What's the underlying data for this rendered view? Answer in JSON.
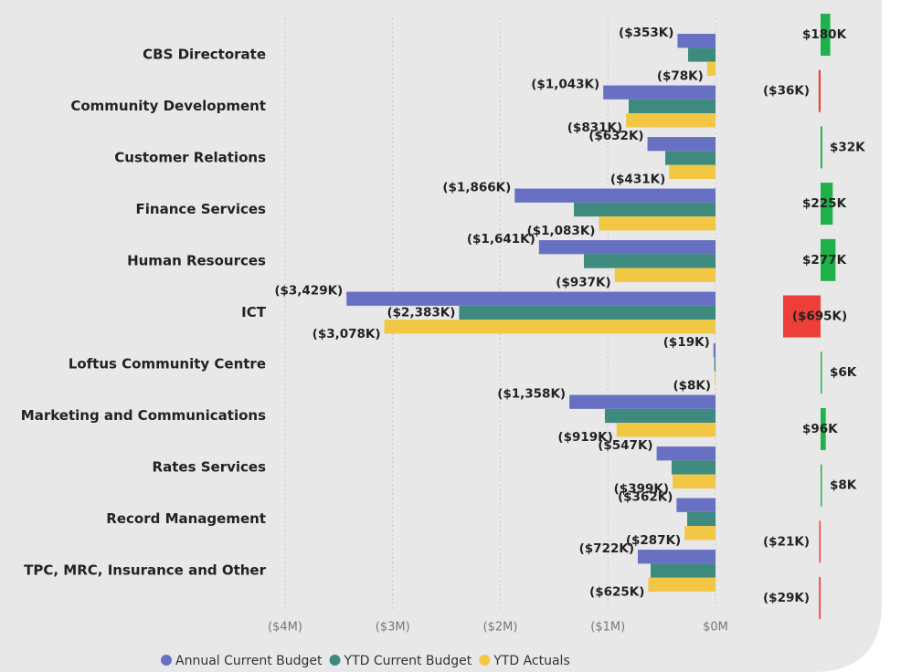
{
  "chart_data": [
    {
      "type": "bar",
      "orientation": "horizontal",
      "categories": [
        "CBS Directorate",
        "Community Development",
        "Customer Relations",
        "Finance Services",
        "Human Resources",
        "ICT",
        "Loftus Community Centre",
        "Marketing and Communications",
        "Rates Services",
        "Record Management",
        "TPC, MRC, Insurance and Other"
      ],
      "series": [
        {
          "name": "Annual Current Budget",
          "color": "#6870c4",
          "values": [
            -353,
            -1043,
            -632,
            -1866,
            -1641,
            -3429,
            -19,
            -1358,
            -547,
            -362,
            -722
          ],
          "value_labels": [
            "($353K)",
            "($1,043K)",
            "($632K)",
            "($1,866K)",
            "($1,641K)",
            "($3,429K)",
            "($19K)",
            "($1,358K)",
            "($547K)",
            "($362K)",
            "($722K)"
          ]
        },
        {
          "name": "YTD Current Budget",
          "color": "#3f8a7e",
          "values": [
            -255,
            -807,
            -467,
            -1316,
            -1223,
            -2383,
            -11,
            -1028,
            -408,
            -263,
            -603
          ],
          "value_labels": [
            null,
            null,
            null,
            null,
            null,
            "($2,383K)",
            null,
            null,
            null,
            null,
            null
          ]
        },
        {
          "name": "YTD Actuals",
          "color": "#f2c744",
          "values": [
            -78,
            -831,
            -431,
            -1083,
            -937,
            -3078,
            -8,
            -919,
            -399,
            -287,
            -625
          ],
          "value_labels": [
            "($78K)",
            "($831K)",
            "($431K)",
            "($1,083K)",
            "($937K)",
            "($3,078K)",
            "($8K)",
            "($919K)",
            "($399K)",
            "($287K)",
            "($625K)"
          ]
        }
      ],
      "xlim": [
        -4000,
        0
      ],
      "xticks": [
        {
          "value": -4000,
          "label": "($4M)"
        },
        {
          "value": -3000,
          "label": "($3M)"
        },
        {
          "value": -2000,
          "label": "($2M)"
        },
        {
          "value": -1000,
          "label": "($1M)"
        },
        {
          "value": 0,
          "label": "$0M"
        }
      ],
      "grid": true,
      "legend": "bottom"
    },
    {
      "type": "variance",
      "values": [
        180,
        -36,
        32,
        225,
        277,
        -695,
        6,
        96,
        8,
        -21,
        -29
      ],
      "value_labels": [
        "$180K",
        "($36K)",
        "$32K",
        "$225K",
        "$277K",
        "($695K)",
        "$6K",
        "$96K",
        "$8K",
        "($21K)",
        "($29K)"
      ],
      "positive_color": "#1fb24a",
      "negative_color": "#ee3e3a"
    }
  ]
}
